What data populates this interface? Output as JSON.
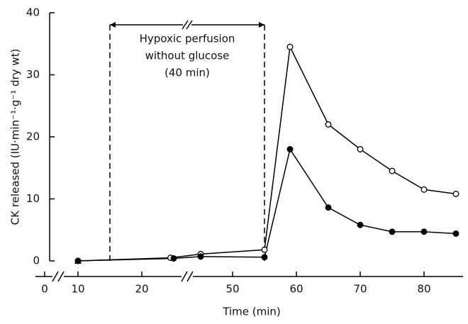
{
  "chart_data": {
    "type": "line",
    "y_label": "CK released (IU·min⁻¹·g⁻¹ dry wt)",
    "x_label": "Time (min)",
    "xlim": [
      0,
      85
    ],
    "xbreaks": [
      [
        1,
        8
      ],
      [
        26,
        44
      ]
    ],
    "xticks": [
      0,
      10,
      20,
      50,
      60,
      70,
      80
    ],
    "ylim": [
      0,
      40
    ],
    "yticks": [
      0,
      10,
      20,
      30,
      40
    ],
    "annotation": {
      "lines": [
        "Hypoxic perfusion",
        "without glucose",
        "(40 min)"
      ],
      "x": [
        15,
        55
      ]
    },
    "series": [
      {
        "color": "#000000",
        "marker": "open",
        "x": [
          10,
          24.5,
          45,
          55,
          59,
          65,
          70,
          75,
          80,
          85
        ],
        "values": [
          0,
          0.5,
          1.1,
          1.8,
          34.5,
          22,
          18,
          14.5,
          11.5,
          10.8
        ]
      },
      {
        "color": "#000000",
        "marker": "filled",
        "x": [
          10,
          25,
          45,
          55,
          59,
          65,
          70,
          75,
          80,
          85
        ],
        "values": [
          0,
          0.4,
          0.7,
          0.6,
          18,
          8.6,
          5.8,
          4.7,
          4.7,
          4.4
        ]
      },
      {
        "color": "#000000",
        "marker": "triangle",
        "x": [
          10
        ],
        "values": [
          0
        ]
      }
    ]
  }
}
